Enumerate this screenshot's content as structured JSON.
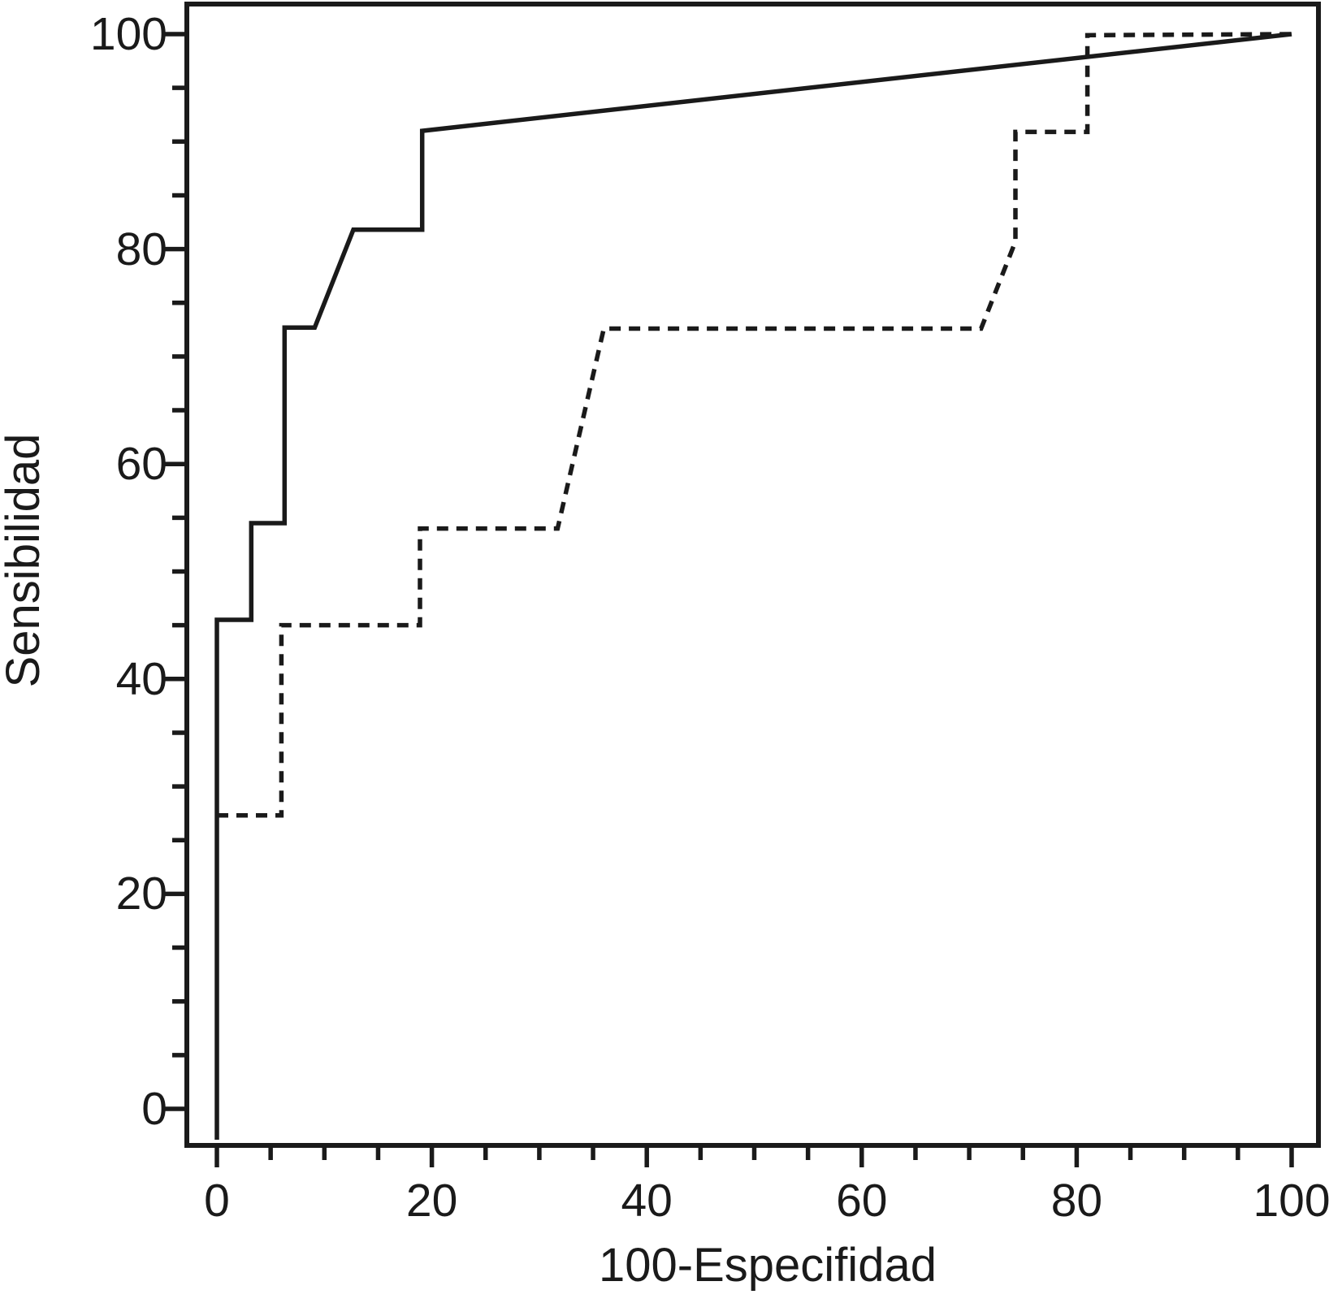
{
  "figure": {
    "background": "#ffffff",
    "ink_color": "#1a1a1a"
  },
  "chart_data": {
    "type": "line",
    "subtype": "roc-curves",
    "title": "",
    "xlabel": "100-Especifidad",
    "ylabel": "Sensibilidad",
    "xlim": [
      0,
      100
    ],
    "ylim": [
      0,
      100
    ],
    "x_major_ticks": [
      0,
      20,
      40,
      60,
      80,
      100
    ],
    "y_major_ticks": [
      0,
      20,
      40,
      60,
      80,
      100
    ],
    "minor_tick_step": 5,
    "grid": false,
    "legend": "none",
    "frame": true,
    "series": [
      {
        "name": "roc-curve-solid",
        "line_style": "solid",
        "color": "#1a1a1a",
        "starts_at_frame_bottom": true,
        "points": [
          [
            0,
            0
          ],
          [
            0,
            45.5
          ],
          [
            3.2,
            45.5
          ],
          [
            3.2,
            54.5
          ],
          [
            6.3,
            54.5
          ],
          [
            6.3,
            72.7
          ],
          [
            9.1,
            72.7
          ],
          [
            12.7,
            81.8
          ],
          [
            19.1,
            81.8
          ],
          [
            19.1,
            91.0
          ],
          [
            100,
            100
          ]
        ]
      },
      {
        "name": "roc-curve-dashed",
        "line_style": "dashed",
        "color": "#1a1a1a",
        "points": [
          [
            0,
            27.3
          ],
          [
            6,
            27.3
          ],
          [
            6,
            45
          ],
          [
            18.9,
            45
          ],
          [
            18.9,
            54
          ],
          [
            31.7,
            54
          ],
          [
            36,
            72.6
          ],
          [
            71.1,
            72.6
          ],
          [
            74.3,
            80.7
          ],
          [
            74.3,
            90.9
          ],
          [
            81,
            90.9
          ],
          [
            81,
            99.9
          ],
          [
            100,
            100
          ]
        ]
      }
    ]
  }
}
